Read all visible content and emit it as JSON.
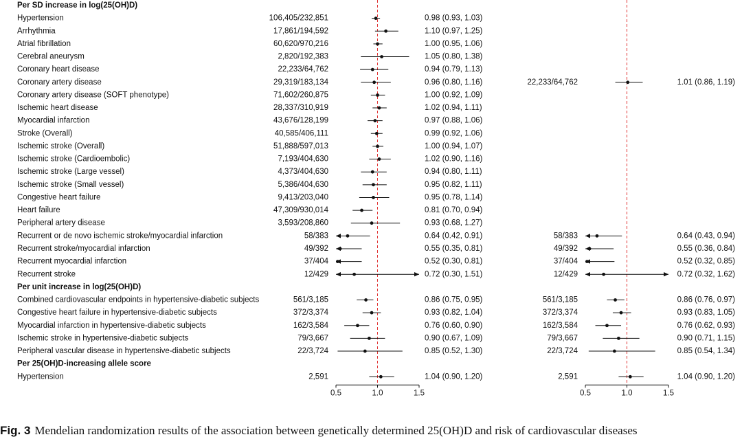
{
  "chart_data": {
    "type": "forest",
    "reference_line": 1.0,
    "colors": {
      "reference_line": "#e03030",
      "marks": "#111111"
    },
    "panels": [
      {
        "name": "left",
        "xlim": [
          0.5,
          1.5
        ],
        "ticks": [
          "0.5",
          "1.0",
          "1.5"
        ]
      },
      {
        "name": "right",
        "xlim": [
          0.5,
          1.5
        ],
        "ticks": [
          "0.5",
          "1.0",
          "1.5"
        ]
      }
    ],
    "rows": [
      {
        "kind": "header",
        "label": "Per SD increase in log(25(OH)D)"
      },
      {
        "label": "Hypertension",
        "left": {
          "n": "106,405/232,851",
          "or": 0.98,
          "lo": 0.93,
          "hi": 1.03,
          "text": "0.98 (0.93, 1.03)"
        }
      },
      {
        "label": "Arrhythmia",
        "left": {
          "n": "17,861/194,592",
          "or": 1.1,
          "lo": 0.97,
          "hi": 1.25,
          "text": "1.10 (0.97, 1.25)"
        }
      },
      {
        "label": "Atrial fibrillation",
        "left": {
          "n": "60,620/970,216",
          "or": 1.0,
          "lo": 0.95,
          "hi": 1.06,
          "text": "1.00 (0.95, 1.06)"
        }
      },
      {
        "label": "Cerebral aneurysm",
        "left": {
          "n": "2,820/192,383",
          "or": 1.05,
          "lo": 0.8,
          "hi": 1.38,
          "text": "1.05 (0.80, 1.38)"
        }
      },
      {
        "label": "Coronary heart disease",
        "left": {
          "n": "22,233/64,762",
          "or": 0.94,
          "lo": 0.79,
          "hi": 1.13,
          "text": "0.94 (0.79, 1.13)"
        }
      },
      {
        "label": "Coronary artery disease",
        "left": {
          "n": "29,319/183,134",
          "or": 0.96,
          "lo": 0.8,
          "hi": 1.16,
          "text": "0.96 (0.80, 1.16)"
        },
        "right": {
          "n": "22,233/64,762",
          "or": 1.01,
          "lo": 0.86,
          "hi": 1.19,
          "text": "1.01 (0.86, 1.19)"
        }
      },
      {
        "label": "Coronary artery disease (SOFT phenotype)",
        "left": {
          "n": "71,602/260,875",
          "or": 1.0,
          "lo": 0.92,
          "hi": 1.09,
          "text": "1.00 (0.92, 1.09)"
        }
      },
      {
        "label": "Ischemic heart disease",
        "left": {
          "n": "28,337/310,919",
          "or": 1.02,
          "lo": 0.94,
          "hi": 1.11,
          "text": "1.02 (0.94, 1.11)"
        }
      },
      {
        "label": "Myocardial infarction",
        "left": {
          "n": "43,676/128,199",
          "or": 0.97,
          "lo": 0.88,
          "hi": 1.06,
          "text": "0.97 (0.88, 1.06)"
        }
      },
      {
        "label": "Stroke (Overall)",
        "left": {
          "n": "40,585/406,111",
          "or": 0.99,
          "lo": 0.92,
          "hi": 1.06,
          "text": "0.99 (0.92, 1.06)"
        }
      },
      {
        "label": "Ischemic stroke (Overall)",
        "left": {
          "n": "51,888/597,013",
          "or": 1.0,
          "lo": 0.94,
          "hi": 1.07,
          "text": "1.00 (0.94, 1.07)"
        }
      },
      {
        "label": "Ischemic stroke (Cardioembolic)",
        "left": {
          "n": "7,193/404,630",
          "or": 1.02,
          "lo": 0.9,
          "hi": 1.16,
          "text": "1.02 (0.90, 1.16)"
        }
      },
      {
        "label": "Ischemic stroke (Large vessel)",
        "left": {
          "n": "4,373/404,630",
          "or": 0.94,
          "lo": 0.8,
          "hi": 1.11,
          "text": "0.94 (0.80, 1.11)"
        }
      },
      {
        "label": "Ischemic stroke (Small vessel)",
        "left": {
          "n": "5,386/404,630",
          "or": 0.95,
          "lo": 0.82,
          "hi": 1.11,
          "text": "0.95 (0.82, 1.11)"
        }
      },
      {
        "label": "Congestive heart failure",
        "left": {
          "n": "9,413/203,040",
          "or": 0.95,
          "lo": 0.78,
          "hi": 1.14,
          "text": "0.95 (0.78, 1.14)"
        }
      },
      {
        "label": "Heart failure",
        "left": {
          "n": "47,309/930,014",
          "or": 0.81,
          "lo": 0.7,
          "hi": 0.94,
          "text": "0.81 (0.70, 0.94)"
        }
      },
      {
        "label": "Peripheral artery disease",
        "left": {
          "n": "3,593/208,860",
          "or": 0.93,
          "lo": 0.68,
          "hi": 1.27,
          "text": "0.93 (0.68, 1.27)"
        }
      },
      {
        "label": "Recurrent or de novo ischemic stroke/myocardial infarction",
        "left": {
          "n": "58/383",
          "or": 0.64,
          "lo": 0.42,
          "hi": 0.91,
          "text": "0.64 (0.42, 0.91)"
        },
        "right": {
          "n": "58/383",
          "or": 0.64,
          "lo": 0.43,
          "hi": 0.94,
          "text": "0.64 (0.43, 0.94)"
        }
      },
      {
        "label": "Recurrent stroke/myocardial infarction",
        "left": {
          "n": "49/392",
          "or": 0.55,
          "lo": 0.35,
          "hi": 0.81,
          "text": "0.55 (0.35, 0.81)"
        },
        "right": {
          "n": "49/392",
          "or": 0.55,
          "lo": 0.36,
          "hi": 0.84,
          "text": "0.55 (0.36, 0.84)"
        }
      },
      {
        "label": "Recurrent myocardial infarction",
        "left": {
          "n": "37/404",
          "or": 0.52,
          "lo": 0.3,
          "hi": 0.81,
          "text": "0.52 (0.30, 0.81)"
        },
        "right": {
          "n": "37/404",
          "or": 0.52,
          "lo": 0.32,
          "hi": 0.85,
          "text": "0.52 (0.32, 0.85)"
        }
      },
      {
        "label": "Recurrent stroke",
        "left": {
          "n": "12/429",
          "or": 0.72,
          "lo": 0.3,
          "hi": 1.51,
          "text": "0.72 (0.30, 1.51)"
        },
        "right": {
          "n": "12/429",
          "or": 0.72,
          "lo": 0.32,
          "hi": 1.62,
          "text": "0.72 (0.32, 1.62)"
        }
      },
      {
        "kind": "header",
        "label": "Per unit increase in log(25(OH)D)"
      },
      {
        "label": "Combined cardiovascular endpoints in hypertensive-diabetic subjects",
        "left": {
          "n": "561/3,185",
          "or": 0.86,
          "lo": 0.75,
          "hi": 0.95,
          "text": "0.86 (0.75, 0.95)"
        },
        "right": {
          "n": "561/3,185",
          "or": 0.86,
          "lo": 0.76,
          "hi": 0.97,
          "text": "0.86 (0.76, 0.97)"
        }
      },
      {
        "label": "Congestive heart failure in hypertensive-diabetic subjects",
        "left": {
          "n": "372/3,374",
          "or": 0.93,
          "lo": 0.82,
          "hi": 1.04,
          "text": "0.93 (0.82, 1.04)"
        },
        "right": {
          "n": "372/3,374",
          "or": 0.93,
          "lo": 0.83,
          "hi": 1.05,
          "text": "0.93 (0.83, 1.05)"
        }
      },
      {
        "label": "Myocardial infarction in hypertensive-diabetic subjects",
        "left": {
          "n": "162/3,584",
          "or": 0.76,
          "lo": 0.6,
          "hi": 0.9,
          "text": "0.76 (0.60, 0.90)"
        },
        "right": {
          "n": "162/3,584",
          "or": 0.76,
          "lo": 0.62,
          "hi": 0.93,
          "text": "0.76 (0.62, 0.93)"
        }
      },
      {
        "label": "Ischemic stroke in hypertensive-diabetic subjects",
        "left": {
          "n": "79/3,667",
          "or": 0.9,
          "lo": 0.67,
          "hi": 1.09,
          "text": "0.90 (0.67, 1.09)"
        },
        "right": {
          "n": "79/3,667",
          "or": 0.9,
          "lo": 0.71,
          "hi": 1.15,
          "text": "0.90 (0.71, 1.15)"
        }
      },
      {
        "label": "Peripheral vascular disease in hypertensive-diabetic subjects",
        "left": {
          "n": "22/3,724",
          "or": 0.85,
          "lo": 0.52,
          "hi": 1.3,
          "text": "0.85 (0.52, 1.30)"
        },
        "right": {
          "n": "22/3,724",
          "or": 0.85,
          "lo": 0.54,
          "hi": 1.34,
          "text": "0.85 (0.54, 1.34)"
        }
      },
      {
        "kind": "header",
        "label": "Per 25(OH)D-increasing allele score"
      },
      {
        "label": "Hypertension",
        "left": {
          "n": "2,591",
          "or": 1.04,
          "lo": 0.9,
          "hi": 1.2,
          "text": "1.04 (0.90, 1.20)"
        },
        "right": {
          "n": "2,591",
          "or": 1.04,
          "lo": 0.9,
          "hi": 1.2,
          "text": "1.04 (0.90, 1.20)"
        }
      }
    ]
  },
  "caption": {
    "label": "Fig. 3",
    "text": "Mendelian randomization results of the association between genetically determined 25(OH)D and risk of cardiovascular diseases"
  }
}
